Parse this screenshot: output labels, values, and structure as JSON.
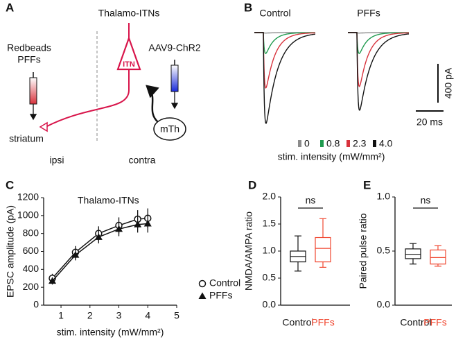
{
  "panel_labels": [
    "A",
    "B",
    "C",
    "D",
    "E"
  ],
  "diagram": {
    "title": "Thalamo-ITNs",
    "neuron": "ITN",
    "left_injection": [
      "Redbeads",
      "PFFs"
    ],
    "right_injection": "AAV9-ChR2",
    "nucleus": "mTh",
    "target": "striatum",
    "sides": [
      "ipsi",
      "contra"
    ]
  },
  "chart_data": [
    {
      "type": "traces",
      "legend_title": "stim. intensity (mW/mm²)",
      "legend": [
        {
          "name": "0",
          "color": "#8c8c8c"
        },
        {
          "name": "0.8",
          "color": "#1f9a4e"
        },
        {
          "name": "2.3",
          "color": "#d8323c"
        },
        {
          "name": "4.0",
          "color": "#111111"
        }
      ],
      "groups": [
        {
          "name": "Control",
          "values": [
            5,
            215,
            570,
            935
          ]
        },
        {
          "name": "PFFs",
          "values": [
            5,
            215,
            555,
            800
          ]
        }
      ],
      "scale_bars": [
        {
          "value": 400,
          "label": "400 pA"
        },
        {
          "value": 20,
          "label": "20 ms"
        }
      ]
    },
    {
      "type": "line",
      "annotation": "Thalamo-ITNs",
      "ylabel": "EPSC amplitude (pA)",
      "xlabel": "stim. intensity (mW/mm²)",
      "x": [
        0.7,
        1.5,
        2.3,
        3.0,
        3.65,
        4.0
      ],
      "series": [
        {
          "name": "Control",
          "color": "#111111",
          "marker": "circle",
          "values": [
            300,
            590,
            800,
            890,
            960,
            970
          ],
          "errors": [
            50,
            70,
            80,
            90,
            100,
            110
          ]
        },
        {
          "name": "PFFs",
          "color": "#111111",
          "marker": "triangle",
          "values": [
            270,
            560,
            760,
            850,
            900,
            910
          ],
          "errors": [
            40,
            60,
            70,
            80,
            90,
            100
          ]
        }
      ],
      "xlim": [
        0.4,
        5
      ],
      "xticks": [
        1,
        2,
        3,
        4,
        5
      ],
      "ylim": [
        0,
        1200
      ],
      "yticks": [
        0,
        200,
        400,
        600,
        800,
        1000,
        1200
      ]
    },
    {
      "type": "box",
      "ylabel": "NMDA/AMPA ratio",
      "annotation": "ns",
      "categories": [
        "Control",
        "PFFs"
      ],
      "colors": [
        "#111111",
        "#f0452e"
      ],
      "boxes": [
        {
          "min": 0.63,
          "q1": 0.8,
          "median": 0.9,
          "q3": 1.0,
          "max": 1.28
        },
        {
          "min": 0.7,
          "q1": 0.8,
          "median": 1.05,
          "q3": 1.25,
          "max": 1.6
        }
      ],
      "ylim": [
        0,
        2
      ],
      "yticks": [
        {
          "value": 0,
          "label": "0.0"
        },
        0.5,
        {
          "value": 1,
          "label": "1.0"
        },
        1.5,
        {
          "value": 2,
          "label": "2.0"
        }
      ]
    },
    {
      "type": "box",
      "ylabel": "Paired pulse ratio",
      "annotation": "ns",
      "categories": [
        "Control",
        "PFFs"
      ],
      "colors": [
        "#111111",
        "#f0452e"
      ],
      "boxes": [
        {
          "min": 0.38,
          "q1": 0.43,
          "median": 0.47,
          "q3": 0.52,
          "max": 0.57
        },
        {
          "min": 0.36,
          "q1": 0.38,
          "median": 0.44,
          "q3": 0.51,
          "max": 0.55
        }
      ],
      "ylim": [
        0,
        1
      ],
      "yticks": [
        {
          "value": 0,
          "label": "0.0"
        },
        0.5,
        {
          "value": 1,
          "label": "1.0"
        }
      ]
    }
  ]
}
